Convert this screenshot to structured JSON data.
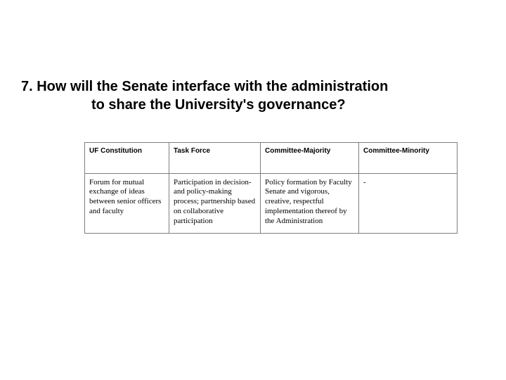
{
  "title": {
    "line1": "7. How will the Senate interface with the administration",
    "line2": "to share the University's governance?"
  },
  "table": {
    "headers": [
      "UF Constitution",
      "Task Force",
      "Committee-Majority",
      "Committee-Minority"
    ],
    "row": [
      "Forum for mutual exchange of ideas between senior officers and faculty",
      "Participation in decision- and policy-making process; partnership based on collaborative participation",
      "Policy formation by Faculty Senate and vigorous, creative, respectful implementation thereof by the Administration",
      "-"
    ]
  },
  "style": {
    "background_color": "#ffffff",
    "text_color": "#000000",
    "border_color": "#7f7f7f",
    "title_fontsize_pt": 15,
    "header_fontsize_pt": 8,
    "body_fontsize_pt": 8
  }
}
